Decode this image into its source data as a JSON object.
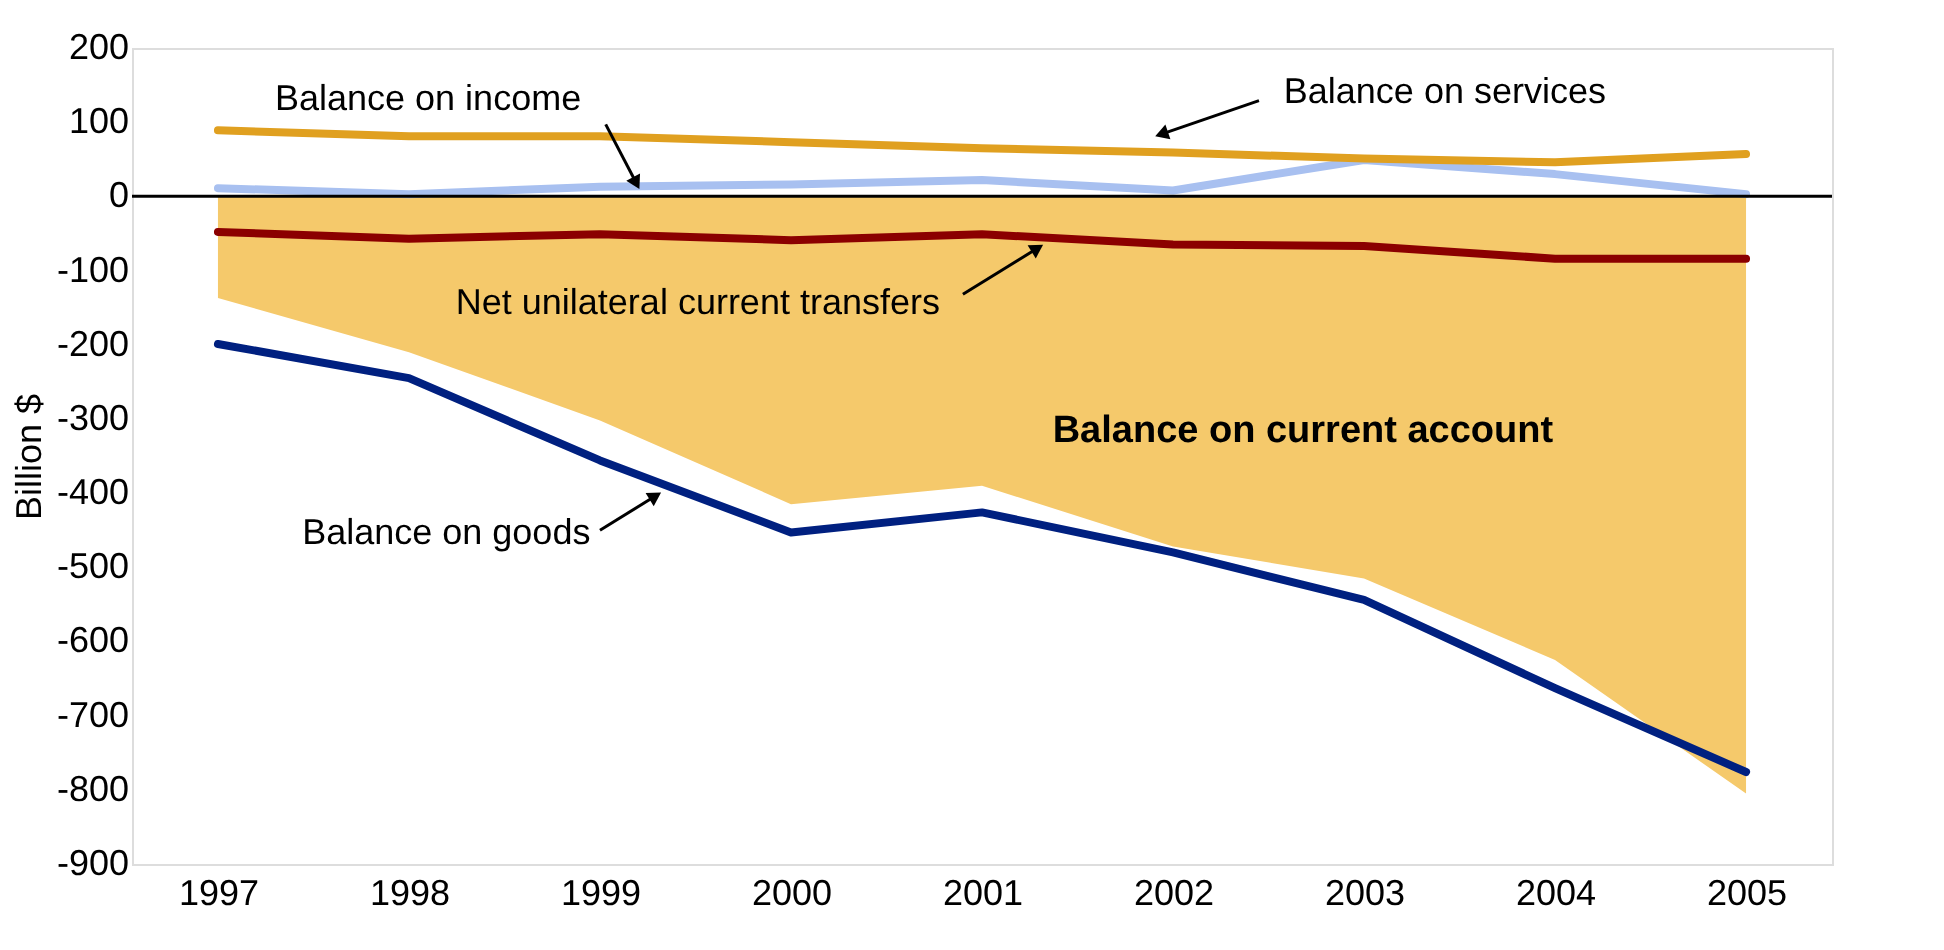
{
  "chart_data": {
    "type": "line",
    "ylabel": "Billion $",
    "categories": [
      "1997",
      "1998",
      "1999",
      "2000",
      "2001",
      "2002",
      "2003",
      "2004",
      "2005"
    ],
    "ylim": [
      -900,
      200
    ],
    "yticks": [
      -900,
      -800,
      -700,
      -600,
      -500,
      -400,
      -300,
      -200,
      -100,
      0,
      100,
      200
    ],
    "grid": false,
    "legend": false,
    "ref_lines": [
      {
        "axis": "y",
        "value": 0,
        "color": "#000000"
      }
    ],
    "series": [
      {
        "name": "Balance on current account",
        "type": "area",
        "color": "#f5c96b",
        "values": [
          -137,
          -210,
          -302,
          -415,
          -390,
          -472,
          -515,
          -625,
          -805
        ]
      },
      {
        "name": "Balance on goods",
        "type": "line",
        "color": "#002080",
        "values": [
          -199,
          -245,
          -356,
          -453,
          -426,
          -480,
          -544,
          -663,
          -776
        ]
      },
      {
        "name": "Balance on income",
        "type": "line",
        "color": "#a8c0f0",
        "values": [
          11,
          3,
          13,
          16,
          22,
          8,
          49,
          30,
          3
        ]
      },
      {
        "name": "Balance on services",
        "type": "line",
        "color": "#e0a020",
        "values": [
          89,
          81,
          81,
          73,
          65,
          59,
          51,
          46,
          57
        ]
      },
      {
        "name": "Net unilateral current transfers",
        "type": "line",
        "color": "#8b0000",
        "values": [
          -48,
          -57,
          -51,
          -59,
          -51,
          -65,
          -67,
          -84,
          -84
        ]
      }
    ]
  }
}
